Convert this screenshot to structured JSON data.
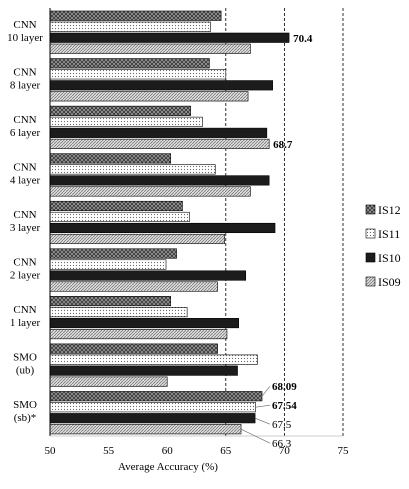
{
  "chart_data": {
    "type": "bar",
    "orientation": "horizontal",
    "xlabel": "Average Accuracy (%)",
    "xlim": [
      50,
      75
    ],
    "xticks": [
      50,
      55,
      60,
      65,
      70,
      75
    ],
    "dashed_gridlines_at": [
      65,
      70,
      75
    ],
    "legend_position": "right",
    "categories": [
      {
        "lines": [
          "CNN",
          "10 layer"
        ]
      },
      {
        "lines": [
          "CNN",
          "8 layer"
        ]
      },
      {
        "lines": [
          "CNN",
          "6 layer"
        ]
      },
      {
        "lines": [
          "CNN",
          "4 layer"
        ]
      },
      {
        "lines": [
          "CNN",
          "3 layer"
        ]
      },
      {
        "lines": [
          "CNN",
          "2 layer"
        ]
      },
      {
        "lines": [
          "CNN",
          "1 layer"
        ]
      },
      {
        "lines": [
          "SMO",
          "(ub)"
        ]
      },
      {
        "lines": [
          "SMO",
          "(sb)*"
        ]
      }
    ],
    "series": [
      {
        "name": "IS12",
        "pattern": "crosshatch",
        "values": [
          64.6,
          63.6,
          62.0,
          60.3,
          61.3,
          60.8,
          60.3,
          64.3,
          68.09
        ]
      },
      {
        "name": "IS11",
        "pattern": "dots",
        "values": [
          63.7,
          65.0,
          63.0,
          64.1,
          61.9,
          59.9,
          61.7,
          67.7,
          67.54
        ]
      },
      {
        "name": "IS10",
        "pattern": "solid",
        "values": [
          70.4,
          69.0,
          68.5,
          68.7,
          69.2,
          66.7,
          66.1,
          66.0,
          67.5
        ]
      },
      {
        "name": "IS09",
        "pattern": "diagonal",
        "values": [
          67.1,
          66.9,
          68.7,
          67.1,
          64.9,
          64.3,
          65.1,
          60.0,
          66.3
        ]
      }
    ],
    "annotations": [
      {
        "category": 0,
        "series": "IS10",
        "text": "70.4",
        "bold": true
      },
      {
        "category": 2,
        "series": "IS09",
        "text": "68.7",
        "bold": true
      },
      {
        "category": 8,
        "series": "IS12",
        "text": "68.09",
        "bold": true
      },
      {
        "category": 8,
        "series": "IS11",
        "text": "67.54",
        "bold": true
      },
      {
        "category": 8,
        "series": "IS10",
        "text": "67.5",
        "bold": false
      },
      {
        "category": 8,
        "series": "IS09",
        "text": "66.3",
        "bold": false
      }
    ],
    "legend_order": [
      "IS12",
      "IS11",
      "IS10",
      "IS09"
    ]
  }
}
